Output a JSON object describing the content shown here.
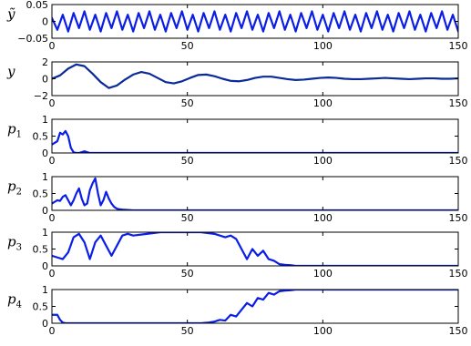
{
  "chart_data": [
    {
      "type": "line",
      "ylabel": "ỹ",
      "xlim": [
        0,
        150
      ],
      "ylim": [
        -0.05,
        0.05
      ],
      "xticks": [
        0,
        50,
        100,
        150
      ],
      "yticks": [
        0.05,
        0,
        -0.05
      ],
      "ytick_labels": [
        "0.05",
        "0",
        "−0.05"
      ],
      "color": "#0a1ee6",
      "x": [
        0,
        2,
        4,
        6,
        8,
        10,
        12,
        14,
        16,
        18,
        20,
        22,
        24,
        26,
        28,
        30,
        32,
        34,
        36,
        38,
        40,
        42,
        44,
        46,
        48,
        50,
        52,
        54,
        56,
        58,
        60,
        62,
        64,
        66,
        68,
        70,
        72,
        74,
        76,
        78,
        80,
        82,
        84,
        86,
        88,
        90,
        92,
        94,
        96,
        98,
        100,
        102,
        104,
        106,
        108,
        110,
        112,
        114,
        116,
        118,
        120,
        122,
        124,
        126,
        128,
        130,
        132,
        134,
        136,
        138,
        140,
        142,
        144,
        146,
        148,
        150
      ],
      "y": [
        0.01,
        -0.025,
        0.02,
        -0.03,
        0.025,
        -0.02,
        0.03,
        -0.025,
        0.02,
        -0.03,
        0.025,
        -0.02,
        0.03,
        -0.025,
        0.02,
        -0.03,
        0.025,
        -0.02,
        0.03,
        -0.025,
        0.02,
        -0.03,
        0.025,
        -0.02,
        0.03,
        -0.025,
        0.02,
        -0.03,
        0.025,
        -0.02,
        0.03,
        -0.025,
        0.02,
        -0.03,
        0.025,
        -0.02,
        0.03,
        -0.025,
        0.02,
        -0.03,
        0.025,
        -0.02,
        0.03,
        -0.025,
        0.02,
        -0.03,
        0.025,
        -0.02,
        0.03,
        -0.025,
        0.02,
        -0.03,
        0.025,
        -0.02,
        0.03,
        -0.025,
        0.02,
        -0.03,
        0.025,
        -0.02,
        0.03,
        -0.025,
        0.02,
        -0.03,
        0.025,
        -0.02,
        0.03,
        -0.025,
        0.02,
        -0.03,
        0.025,
        -0.02,
        0.03,
        -0.025,
        0.02,
        -0.03
      ]
    },
    {
      "type": "line",
      "ylabel": "y",
      "xlim": [
        0,
        150
      ],
      "ylim": [
        -2,
        2
      ],
      "xticks": [
        0,
        50,
        100,
        150
      ],
      "yticks": [
        2,
        0,
        -2
      ],
      "ytick_labels": [
        "2",
        "0",
        "−2"
      ],
      "color": "#0a2a99",
      "x": [
        0,
        3,
        6,
        9,
        12,
        15,
        18,
        21,
        24,
        27,
        30,
        33,
        36,
        39,
        42,
        45,
        48,
        51,
        54,
        57,
        60,
        63,
        66,
        69,
        72,
        75,
        78,
        81,
        84,
        87,
        90,
        93,
        96,
        99,
        102,
        105,
        108,
        111,
        114,
        117,
        120,
        123,
        126,
        129,
        132,
        135,
        138,
        141,
        144,
        147,
        150
      ],
      "y": [
        0,
        0.4,
        1.2,
        1.7,
        1.5,
        0.6,
        -0.4,
        -1.1,
        -0.8,
        -0.1,
        0.5,
        0.8,
        0.6,
        0.1,
        -0.4,
        -0.55,
        -0.3,
        0.1,
        0.45,
        0.5,
        0.3,
        0,
        -0.25,
        -0.3,
        -0.15,
        0.1,
        0.25,
        0.25,
        0.1,
        -0.05,
        -0.15,
        -0.1,
        0,
        0.1,
        0.15,
        0.1,
        0,
        -0.05,
        -0.05,
        0,
        0.05,
        0.1,
        0.05,
        0,
        -0.05,
        0,
        0.05,
        0.05,
        0,
        0,
        0.05
      ]
    },
    {
      "type": "line",
      "ylabel": "p",
      "ylabel_sub": "1",
      "xlim": [
        0,
        150
      ],
      "ylim": [
        0,
        1
      ],
      "xticks": [
        0,
        50,
        100,
        150
      ],
      "yticks": [
        1,
        0.5,
        0
      ],
      "ytick_labels": [
        "1",
        "0.5",
        "0"
      ],
      "color": "#0a1ee6",
      "x": [
        0,
        1,
        2,
        3,
        4,
        5,
        6,
        7,
        8,
        9,
        10,
        12,
        14,
        16,
        20,
        30,
        50,
        100,
        150
      ],
      "y": [
        0.25,
        0.3,
        0.35,
        0.6,
        0.55,
        0.65,
        0.5,
        0.15,
        0.02,
        0,
        0,
        0.05,
        0,
        0,
        0,
        0,
        0,
        0,
        0
      ]
    },
    {
      "type": "line",
      "ylabel": "p",
      "ylabel_sub": "2",
      "xlim": [
        0,
        150
      ],
      "ylim": [
        0,
        1
      ],
      "xticks": [
        0,
        50,
        100,
        150
      ],
      "yticks": [
        1,
        0.5,
        0
      ],
      "ytick_labels": [
        "1",
        "0.5",
        "0"
      ],
      "color": "#0a1ee6",
      "x": [
        0,
        1,
        2,
        3,
        4,
        5,
        6,
        7,
        8,
        9,
        10,
        11,
        12,
        13,
        14,
        15,
        16,
        17,
        18,
        19,
        20,
        21,
        22,
        23,
        24,
        25,
        26,
        28,
        30,
        40,
        60,
        100,
        150
      ],
      "y": [
        0.2,
        0.25,
        0.3,
        0.28,
        0.4,
        0.45,
        0.3,
        0.15,
        0.3,
        0.5,
        0.65,
        0.35,
        0.15,
        0.2,
        0.6,
        0.8,
        0.95,
        0.5,
        0.15,
        0.3,
        0.55,
        0.35,
        0.2,
        0.1,
        0.05,
        0.03,
        0.02,
        0.01,
        0,
        0,
        0,
        0,
        0
      ]
    },
    {
      "type": "line",
      "ylabel": "p",
      "ylabel_sub": "3",
      "xlim": [
        0,
        150
      ],
      "ylim": [
        0,
        1
      ],
      "xticks": [
        0,
        50,
        100,
        150
      ],
      "yticks": [
        1,
        0.5,
        0
      ],
      "ytick_labels": [
        "1",
        "0.5",
        "0"
      ],
      "color": "#0a1ee6",
      "x": [
        0,
        2,
        4,
        6,
        8,
        10,
        12,
        14,
        16,
        18,
        20,
        22,
        24,
        26,
        28,
        30,
        35,
        40,
        45,
        50,
        55,
        60,
        62,
        64,
        66,
        68,
        70,
        72,
        74,
        76,
        78,
        80,
        82,
        84,
        86,
        88,
        90,
        95,
        100,
        150
      ],
      "y": [
        0.3,
        0.25,
        0.2,
        0.4,
        0.85,
        0.95,
        0.7,
        0.2,
        0.7,
        0.9,
        0.6,
        0.3,
        0.6,
        0.9,
        0.95,
        0.9,
        0.95,
        1,
        1,
        1,
        1,
        0.95,
        0.9,
        0.85,
        0.9,
        0.8,
        0.5,
        0.2,
        0.5,
        0.3,
        0.45,
        0.2,
        0.15,
        0.05,
        0.03,
        0.02,
        0,
        0,
        0,
        0
      ]
    },
    {
      "type": "line",
      "ylabel": "p",
      "ylabel_sub": "4",
      "xlim": [
        0,
        150
      ],
      "ylim": [
        0,
        1
      ],
      "xticks": [
        0,
        50,
        100,
        150
      ],
      "yticks": [
        1,
        0.5,
        0
      ],
      "ytick_labels": [
        "1",
        "0.5",
        "0"
      ],
      "color": "#0a1ee6",
      "x": [
        0,
        2,
        3,
        4,
        5,
        10,
        20,
        40,
        50,
        55,
        58,
        60,
        62,
        64,
        66,
        68,
        70,
        72,
        74,
        76,
        78,
        80,
        82,
        84,
        86,
        88,
        90,
        100,
        150
      ],
      "y": [
        0.25,
        0.25,
        0.1,
        0.02,
        0,
        0,
        0,
        0,
        0,
        0,
        0.02,
        0.05,
        0.1,
        0.08,
        0.25,
        0.2,
        0.4,
        0.6,
        0.5,
        0.75,
        0.7,
        0.9,
        0.85,
        0.95,
        0.97,
        0.98,
        1,
        1,
        1
      ]
    }
  ]
}
